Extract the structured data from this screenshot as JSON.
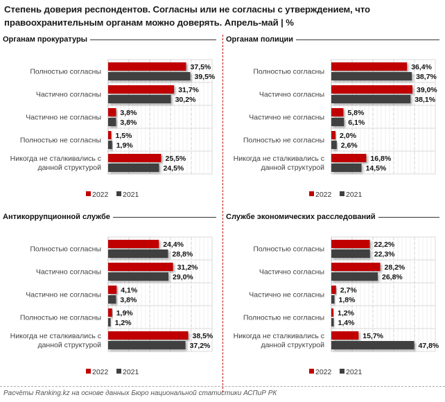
{
  "title_line1": "Степень доверия респондентов. Согласны или не согласны с утверждением, что",
  "title_line2": "правоохранительным органам можно доверять. Апрель-май | %",
  "source": "Расчёты Ranking.kz на основе данных Бюро национальной статистики АСПиР РК",
  "colors": {
    "2022": "#c00000",
    "2021": "#404040"
  },
  "chart_data": [
    {
      "type": "bar",
      "title": "Органам прокуратуры",
      "categories": [
        "Полностью согласны",
        "Частично согласны",
        "Частично не согласны",
        "Полностью не согласны",
        "Никогда не сталкивались с данной структурой"
      ],
      "series": [
        {
          "name": "2022",
          "values": [
            37.5,
            31.7,
            3.8,
            1.5,
            25.5
          ],
          "labels": [
            "37,5%",
            "31,7%",
            "3,8%",
            "1,5%",
            "25,5%"
          ]
        },
        {
          "name": "2021",
          "values": [
            39.5,
            30.2,
            3.8,
            1.9,
            24.5
          ],
          "labels": [
            "39,5%",
            "30,2%",
            "3,8%",
            "1,9%",
            "24,5%"
          ]
        }
      ],
      "xlim": [
        0,
        50
      ],
      "grid": true,
      "legend": "bottom",
      "orientation": "horizontal"
    },
    {
      "type": "bar",
      "title": "Органам полиции",
      "categories": [
        "Полностью согласны",
        "Частично согласны",
        "Частично не согласны",
        "Полностью не согласны",
        "Никогда не сталкивались с данной структурой"
      ],
      "series": [
        {
          "name": "2022",
          "values": [
            36.4,
            39.0,
            5.8,
            2.0,
            16.8
          ],
          "labels": [
            "36,4%",
            "39,0%",
            "5,8%",
            "2,0%",
            "16,8%"
          ]
        },
        {
          "name": "2021",
          "values": [
            38.7,
            38.1,
            6.1,
            2.6,
            14.5
          ],
          "labels": [
            "38,7%",
            "38,1%",
            "6,1%",
            "2,6%",
            "14,5%"
          ]
        }
      ],
      "xlim": [
        0,
        50
      ],
      "grid": true,
      "legend": "bottom",
      "orientation": "horizontal"
    },
    {
      "type": "bar",
      "title": "Антикоррупционной службе",
      "categories": [
        "Полностью согласны",
        "Частично согласны",
        "Частично не согласны",
        "Полностью не согласны",
        "Никогда не сталкивались с данной структурой"
      ],
      "series": [
        {
          "name": "2022",
          "values": [
            24.4,
            31.2,
            4.1,
            1.9,
            38.5
          ],
          "labels": [
            "24,4%",
            "31,2%",
            "4,1%",
            "1,9%",
            "38,5%"
          ]
        },
        {
          "name": "2021",
          "values": [
            28.8,
            29.0,
            3.8,
            1.2,
            37.2
          ],
          "labels": [
            "28,8%",
            "29,0%",
            "3,8%",
            "1,2%",
            "37,2%"
          ]
        }
      ],
      "xlim": [
        0,
        50
      ],
      "grid": true,
      "legend": "bottom",
      "orientation": "horizontal"
    },
    {
      "type": "bar",
      "title": "Службе экономических расследований",
      "categories": [
        "Полностью согласны",
        "Частично согласны",
        "Частично не согласны",
        "Полностью не согласны",
        "Никогда не сталкивались с данной структурой"
      ],
      "series": [
        {
          "name": "2022",
          "values": [
            22.2,
            28.2,
            2.7,
            1.2,
            15.7
          ],
          "labels": [
            "22,2%",
            "28,2%",
            "2,7%",
            "1,2%",
            "15,7%"
          ]
        },
        {
          "name": "2021",
          "values": [
            22.3,
            26.8,
            1.8,
            1.4,
            47.8
          ],
          "labels": [
            "22,3%",
            "26,8%",
            "1,8%",
            "1,4%",
            "47,8%"
          ]
        }
      ],
      "xlim": [
        0,
        60
      ],
      "grid": true,
      "legend": "bottom",
      "orientation": "horizontal"
    }
  ],
  "category_lines": [
    [
      "Полностью согласны"
    ],
    [
      "Частично согласны"
    ],
    [
      "Частично не согласны"
    ],
    [
      "Полностью не согласны"
    ],
    [
      "Никогда не сталкивались с",
      "данной структурой"
    ]
  ]
}
